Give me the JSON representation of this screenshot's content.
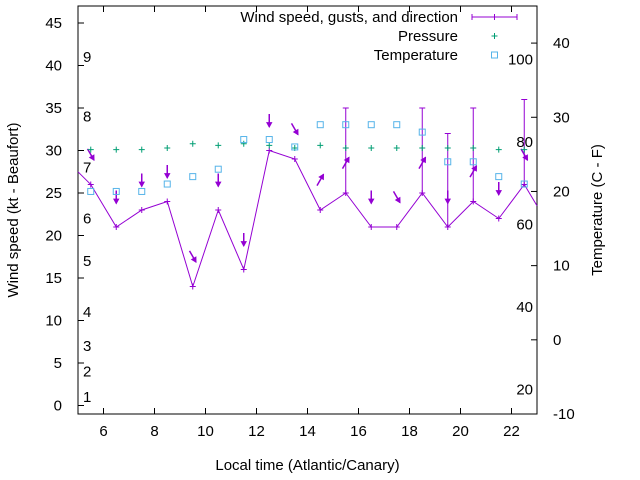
{
  "chart_data": {
    "type": "line",
    "xlabel": "Local time (Atlantic/Canary)",
    "ylabel_left": "Wind speed (kt - Beaufort)",
    "ylabel_right": "Temperature (C - F)",
    "xlim": [
      5,
      23
    ],
    "ylim_left": [
      -1,
      47
    ],
    "ylim_right": [
      -10,
      45
    ],
    "x_ticks": [
      6,
      8,
      10,
      12,
      14,
      16,
      18,
      20,
      22
    ],
    "y_ticks_left": [
      0,
      5,
      10,
      15,
      20,
      25,
      30,
      35,
      40,
      45
    ],
    "y_ticks_right": [
      -10,
      0,
      10,
      20,
      30,
      40
    ],
    "beaufort_labels": [
      {
        "label": "1",
        "kt": 1
      },
      {
        "label": "2",
        "kt": 4
      },
      {
        "label": "3",
        "kt": 7
      },
      {
        "label": "4",
        "kt": 11
      },
      {
        "label": "5",
        "kt": 17
      },
      {
        "label": "6",
        "kt": 22
      },
      {
        "label": "7",
        "kt": 28
      },
      {
        "label": "8",
        "kt": 34
      },
      {
        "label": "9",
        "kt": 41
      }
    ],
    "fahrenheit_labels": [
      {
        "label": "20",
        "f": 20
      },
      {
        "label": "40",
        "f": 40
      },
      {
        "label": "60",
        "f": 60
      },
      {
        "label": "80",
        "f": 80
      },
      {
        "label": "100",
        "f": 100
      }
    ],
    "legend": {
      "position": "top-right",
      "entries": [
        "Wind speed, gusts, and direction",
        "Pressure",
        "Temperature"
      ]
    },
    "colors": {
      "wind": "#9400d3",
      "pressure": "#009e73",
      "temperature": "#56b4e9"
    },
    "wind": {
      "x": [
        5.5,
        6.5,
        7.5,
        8.5,
        9.5,
        10.5,
        11.5,
        12.5,
        13.5,
        14.5,
        15.5,
        16.5,
        17.5,
        18.5,
        19.5,
        20.5,
        21.5,
        22.5
      ],
      "speed": [
        26,
        21,
        23,
        24,
        14,
        23,
        16,
        30,
        29,
        23,
        25,
        21,
        21,
        25,
        21,
        24,
        22,
        26
      ],
      "gust": [
        null,
        null,
        null,
        null,
        null,
        null,
        null,
        null,
        null,
        null,
        35,
        null,
        null,
        35,
        32,
        35,
        null,
        36
      ],
      "direction_deg": [
        330,
        0,
        0,
        0,
        330,
        0,
        0,
        0,
        330,
        210,
        210,
        0,
        330,
        210,
        0,
        210,
        0,
        330
      ],
      "leading_value": 27.5,
      "trailing_value": 23.5
    },
    "pressure": {
      "x": [
        5.5,
        6.5,
        7.5,
        8.5,
        9.5,
        10.5,
        11.5,
        12.5,
        13.5,
        14.5,
        15.5,
        16.5,
        17.5,
        18.5,
        19.5,
        20.5,
        21.5,
        22.5
      ],
      "y": [
        30.1,
        30.1,
        30.1,
        30.3,
        30.8,
        30.6,
        30.8,
        30.6,
        30.3,
        30.6,
        30.3,
        30.3,
        30.3,
        30.3,
        30.3,
        30.3,
        30.1,
        30.1
      ]
    },
    "temperature": {
      "x": [
        5.5,
        6.5,
        7.5,
        8.5,
        9.5,
        10.5,
        11.5,
        12.5,
        13.5,
        14.5,
        15.5,
        16.5,
        17.5,
        18.5,
        19.5,
        20.5,
        21.5,
        22.5
      ],
      "celsius": [
        20,
        20,
        20,
        21,
        22,
        23,
        27,
        27,
        26,
        29,
        29,
        29,
        29,
        28,
        24,
        24,
        22,
        21
      ]
    }
  }
}
